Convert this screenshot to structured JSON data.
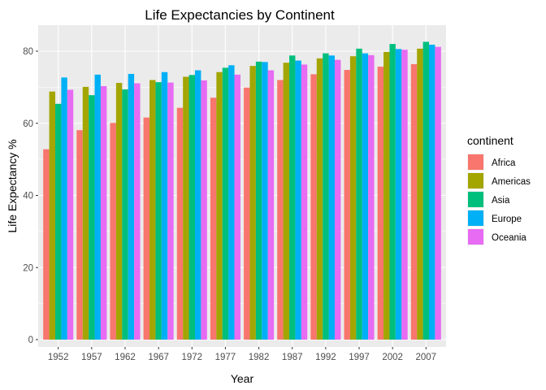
{
  "chart_data": {
    "type": "bar",
    "title": "Life Expectancies by Continent",
    "xlabel": "Year",
    "ylabel": "Life Expectancy %",
    "ylim": [
      0,
      86
    ],
    "yticks": [
      0,
      20,
      40,
      60,
      80
    ],
    "grid": true,
    "legend": {
      "title": "continent",
      "position": "right"
    },
    "categories": [
      "1952",
      "1957",
      "1962",
      "1967",
      "1972",
      "1977",
      "1982",
      "1987",
      "1992",
      "1997",
      "2002",
      "2007"
    ],
    "series": [
      {
        "name": "Africa",
        "color": "#F8766D",
        "values": [
          52.8,
          58.1,
          60.1,
          61.6,
          64.3,
          67.1,
          69.9,
          72.0,
          73.6,
          74.8,
          75.7,
          76.4
        ]
      },
      {
        "name": "Americas",
        "color": "#A3A500",
        "values": [
          68.8,
          70.1,
          71.2,
          72.0,
          72.9,
          74.2,
          75.9,
          76.8,
          78.0,
          78.6,
          79.8,
          80.7
        ]
      },
      {
        "name": "Asia",
        "color": "#00BF7D",
        "values": [
          65.4,
          67.8,
          69.4,
          71.4,
          73.4,
          75.4,
          77.1,
          78.8,
          79.4,
          80.7,
          82.0,
          82.6
        ]
      },
      {
        "name": "Europe",
        "color": "#00B0F6",
        "values": [
          72.7,
          73.5,
          73.7,
          74.2,
          74.7,
          76.1,
          77.0,
          77.4,
          78.8,
          79.4,
          80.6,
          81.8
        ]
      },
      {
        "name": "Oceania",
        "color": "#E76BF3",
        "values": [
          69.3,
          70.3,
          71.1,
          71.3,
          71.9,
          73.5,
          74.7,
          76.3,
          77.6,
          78.9,
          80.4,
          81.2
        ]
      }
    ]
  }
}
